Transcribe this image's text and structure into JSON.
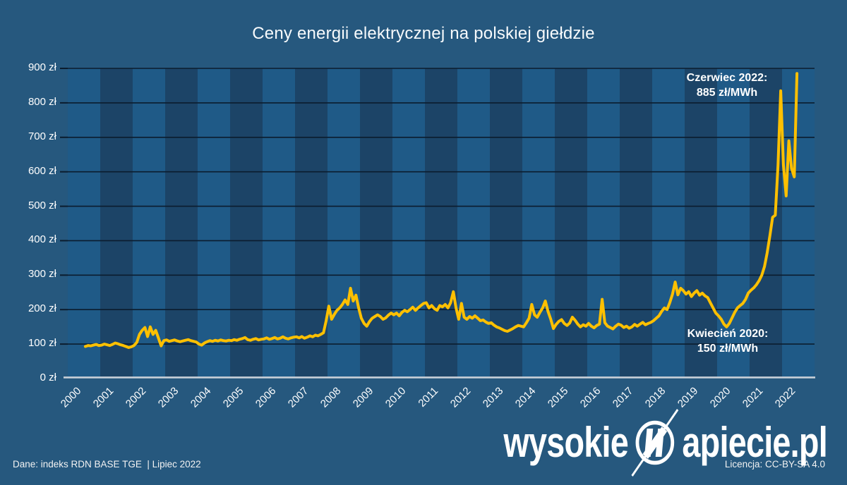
{
  "title": "Ceny energii elektrycznej na polskiej giełdzie",
  "colors": {
    "background": "#26587E",
    "band_light": "#1F5A87",
    "band_dark": "#1C4467",
    "gridline": "#0B1C2E",
    "zero_line": "#C9D0D8",
    "line": "#FFC000",
    "text": "#FFFFFF"
  },
  "y_axis": {
    "labels": [
      "900 zł",
      "800 zł",
      "700 zł",
      "600 zł",
      "500 zł",
      "400 zł",
      "300 zł",
      "200 zł",
      "100 zł",
      "0 zł"
    ],
    "min": 0,
    "max": 900,
    "step": 100
  },
  "x_axis": {
    "years": [
      "2000",
      "2001",
      "2002",
      "2003",
      "2004",
      "2005",
      "2006",
      "2007",
      "2008",
      "2009",
      "2010",
      "2011",
      "2012",
      "2013",
      "2014",
      "2015",
      "2016",
      "2017",
      "2018",
      "2019",
      "2020",
      "2021",
      "2022"
    ]
  },
  "annotations": {
    "peak": {
      "line1": "Czerwiec 2022:",
      "line2": "885 zł/MWh"
    },
    "dip": {
      "line1": "Kwiecień 2020:",
      "line2": "150 zł/MWh"
    }
  },
  "footer": {
    "source": "Dane: indeks RDN BASE TGE  | Lipiec 2022",
    "license": "Licencja: CC-BY-SA 4.0"
  },
  "logo": {
    "prefix": "wysokie",
    "suffix": "apiecie.pl"
  },
  "chart_data": {
    "type": "line",
    "title": "Ceny energii elektrycznej na polskiej giełdzie",
    "unit": "zł/MWh",
    "x_start": "2000-07",
    "x_end": "2022-06",
    "frequency": "monthly",
    "ylim": [
      0,
      900
    ],
    "y_tick_step": 100,
    "grid": "horizontal",
    "legend": "none",
    "background_bands": "alternating-years",
    "highlight_points": [
      {
        "label": "Kwiecień 2020",
        "value": 150
      },
      {
        "label": "Czerwiec 2022",
        "value": 885
      }
    ],
    "series": [
      {
        "name": "indeks RDN BASE TGE",
        "values": [
          93,
          96,
          95,
          97,
          99,
          96,
          97,
          100,
          98,
          96,
          99,
          103,
          101,
          98,
          96,
          93,
          90,
          92,
          96,
          105,
          128,
          140,
          148,
          122,
          150,
          128,
          140,
          118,
          95,
          110,
          112,
          108,
          110,
          112,
          109,
          107,
          109,
          111,
          113,
          110,
          108,
          106,
          100,
          97,
          103,
          107,
          110,
          108,
          111,
          109,
          112,
          110,
          109,
          111,
          110,
          113,
          111,
          114,
          116,
          119,
          113,
          111,
          114,
          116,
          112,
          114,
          115,
          118,
          114,
          116,
          119,
          115,
          117,
          121,
          117,
          115,
          118,
          120,
          121,
          118,
          122,
          117,
          120,
          124,
          121,
          126,
          124,
          128,
          133,
          168,
          210,
          172,
          186,
          198,
          205,
          215,
          228,
          215,
          262,
          225,
          242,
          205,
          175,
          160,
          152,
          165,
          175,
          180,
          185,
          180,
          172,
          176,
          184,
          190,
          185,
          190,
          182,
          192,
          198,
          194,
          200,
          207,
          198,
          205,
          212,
          218,
          220,
          205,
          212,
          203,
          198,
          212,
          208,
          215,
          205,
          220,
          252,
          205,
          172,
          218,
          178,
          172,
          180,
          175,
          182,
          175,
          168,
          170,
          164,
          160,
          162,
          155,
          150,
          147,
          143,
          139,
          137,
          141,
          145,
          150,
          154,
          152,
          150,
          162,
          175,
          215,
          185,
          178,
          192,
          205,
          225,
          195,
          172,
          145,
          157,
          166,
          171,
          160,
          154,
          161,
          178,
          169,
          158,
          150,
          156,
          152,
          160,
          152,
          147,
          154,
          158,
          230,
          162,
          152,
          148,
          144,
          152,
          158,
          155,
          148,
          152,
          146,
          150,
          157,
          152,
          158,
          163,
          156,
          160,
          163,
          168,
          175,
          182,
          195,
          205,
          200,
          220,
          245,
          280,
          243,
          262,
          255,
          245,
          252,
          238,
          248,
          255,
          242,
          248,
          240,
          235,
          220,
          205,
          190,
          182,
          172,
          158,
          150,
          160,
          176,
          192,
          205,
          212,
          218,
          230,
          248,
          256,
          263,
          272,
          284,
          300,
          325,
          365,
          415,
          468,
          474,
          620,
          835,
          620,
          530,
          690,
          610,
          585,
          885
        ]
      }
    ]
  }
}
